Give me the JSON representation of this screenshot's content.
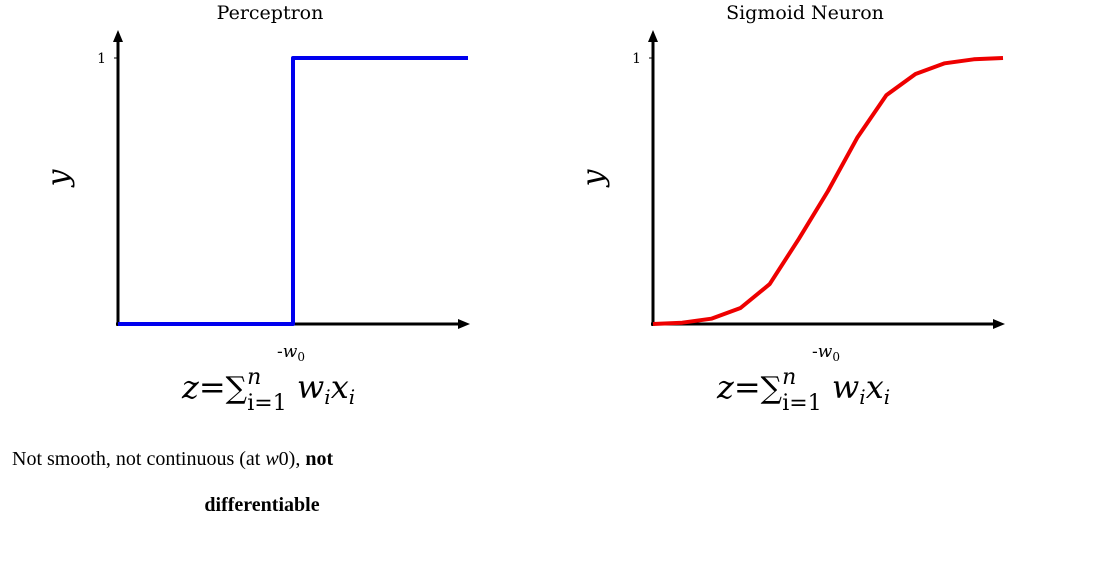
{
  "chart_data": [
    {
      "type": "line",
      "title": "Perceptron",
      "ylabel": "y",
      "xlabel": "z= Σ_{i=1}^{n} w_i x_i",
      "y_ticks": [
        "1"
      ],
      "x_ticks": [
        "-w0"
      ],
      "series": [
        {
          "color": "#0000ee",
          "step": true,
          "x": [
            -3,
            0,
            0,
            3
          ],
          "y": [
            0,
            0,
            1,
            1
          ]
        }
      ],
      "xlim": [
        -3,
        3
      ],
      "ylim": [
        0,
        1
      ]
    },
    {
      "type": "line",
      "title": "Sigmoid Neuron",
      "ylabel": "y",
      "xlabel": "z= Σ_{i=1}^{n} w_i x_i",
      "y_ticks": [
        "1"
      ],
      "x_ticks": [
        "-w0"
      ],
      "series": [
        {
          "color": "#ee0000",
          "x": [
            -3,
            -2.5,
            -2,
            -1.5,
            -1,
            -0.5,
            0,
            0.5,
            1,
            1.5,
            2,
            2.5,
            3
          ],
          "y": [
            0.0,
            0.005,
            0.02,
            0.06,
            0.15,
            0.32,
            0.5,
            0.7,
            0.86,
            0.94,
            0.98,
            0.995,
            1.0
          ]
        }
      ],
      "xlim": [
        -3,
        3
      ],
      "ylim": [
        0,
        1
      ]
    }
  ],
  "caption": {
    "line1_start": "Not smooth, not continuous (at ",
    "line1_var": "w",
    "line1_num": "0",
    "line1_mid": "), ",
    "line1_bold": "not",
    "line2_bold": "differentiable"
  }
}
